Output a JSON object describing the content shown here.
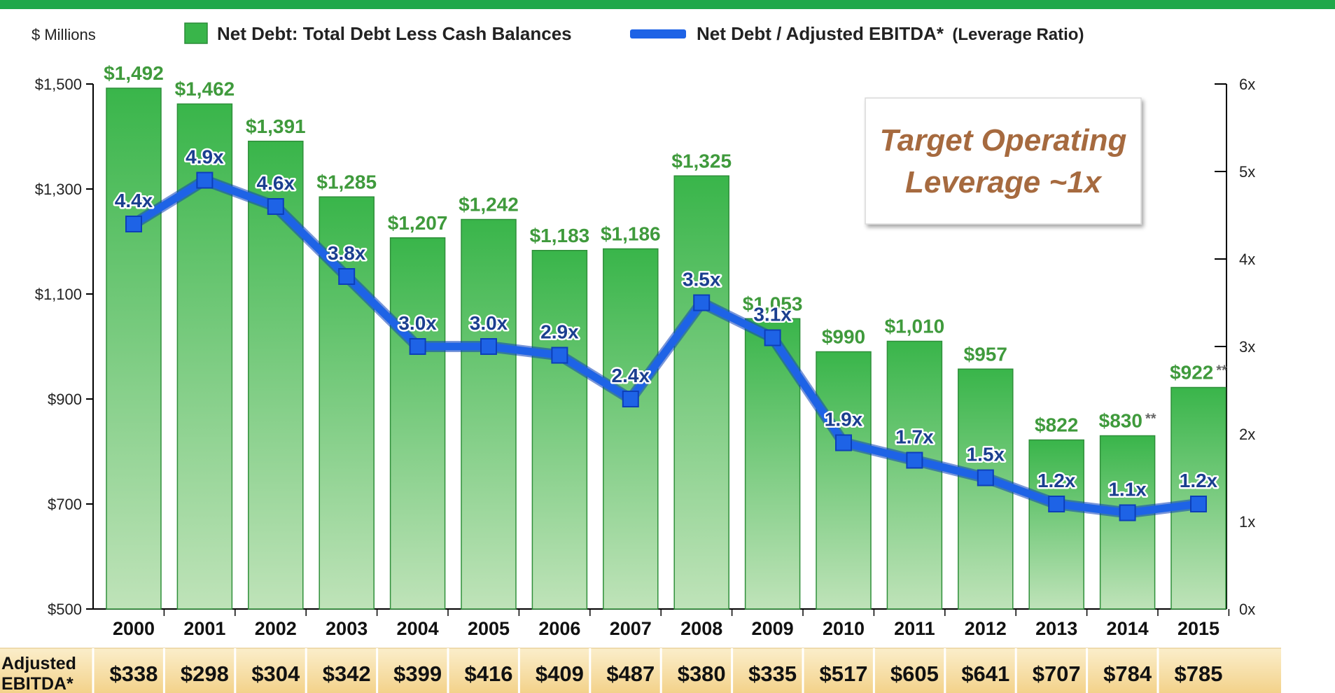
{
  "colors": {
    "top_strip": "#1fa84a",
    "bar_top": "#39b54a",
    "bar_bottom": "#bfe3b9",
    "line": "#1e63e6",
    "bar_label": "#3f9a3c",
    "line_label": "#1b3f8f",
    "callout_text": "#a66a3f",
    "ebitda_band": "#f7dfa6"
  },
  "units_label": "$ Millions",
  "legend": {
    "bars": "Net Debt:  Total Debt Less Cash Balances",
    "line_main": "Net Debt / Adjusted EBITDA*",
    "line_paren": "(Leverage Ratio)"
  },
  "callout": {
    "line1": "Target Operating",
    "line2": "Leverage ~1x"
  },
  "ebitda_row": {
    "header_line1": "Adjusted",
    "header_line2": "EBITDA*",
    "values": [
      "$338",
      "$298",
      "$304",
      "$342",
      "$399",
      "$416",
      "$409",
      "$487",
      "$380",
      "$335",
      "$517",
      "$605",
      "$641",
      "$707",
      "$784",
      "$785"
    ]
  },
  "chart_data": {
    "type": "bar",
    "categories": [
      "2000",
      "2001",
      "2002",
      "2003",
      "2004",
      "2005",
      "2006",
      "2007",
      "2008",
      "2009",
      "2010",
      "2011",
      "2012",
      "2013",
      "2014",
      "2015"
    ],
    "series": [
      {
        "name": "Net Debt:  Total Debt Less Cash Balances",
        "type": "bar",
        "axis": "left",
        "values": [
          1492,
          1462,
          1391,
          1285,
          1207,
          1242,
          1183,
          1186,
          1325,
          1053,
          990,
          1010,
          957,
          822,
          830,
          922
        ],
        "labels": [
          "$1,492",
          "$1,462",
          "$1,391",
          "$1,285",
          "$1,207",
          "$1,242",
          "$1,183",
          "$1,186",
          "$1,325",
          "$1,053",
          "$990",
          "$1,010",
          "$957",
          "$822",
          "$830",
          "$922"
        ],
        "label_notes": [
          "",
          "",
          "",
          "",
          "",
          "",
          "",
          "",
          "",
          "",
          "",
          "",
          "",
          "",
          "**",
          "**"
        ]
      },
      {
        "name": "Net Debt / Adjusted EBITDA* (Leverage Ratio)",
        "type": "line",
        "axis": "right",
        "values": [
          4.4,
          4.9,
          4.6,
          3.8,
          3.0,
          3.0,
          2.9,
          2.4,
          3.5,
          3.1,
          1.9,
          1.7,
          1.5,
          1.2,
          1.1,
          1.2
        ],
        "labels": [
          "4.4x",
          "4.9x",
          "4.6x",
          "3.8x",
          "3.0x",
          "3.0x",
          "2.9x",
          "2.4x",
          "3.5x",
          "3.1x",
          "1.9x",
          "1.7x",
          "1.5x",
          "1.2x",
          "1.1x",
          "1.2x"
        ]
      }
    ],
    "left_axis": {
      "ylim": [
        500,
        1500
      ],
      "ticks": [
        500,
        700,
        900,
        1100,
        1300,
        1500
      ],
      "tick_labels": [
        "$500",
        "$700",
        "$900",
        "$1,100",
        "$1,300",
        "$1,500"
      ]
    },
    "right_axis": {
      "ylim": [
        0,
        6
      ],
      "ticks": [
        0,
        1,
        2,
        3,
        4,
        5,
        6
      ],
      "tick_labels": [
        "0x",
        "1x",
        "2x",
        "3x",
        "4x",
        "5x",
        "6x"
      ]
    },
    "grid": false,
    "legend_position": "top"
  }
}
